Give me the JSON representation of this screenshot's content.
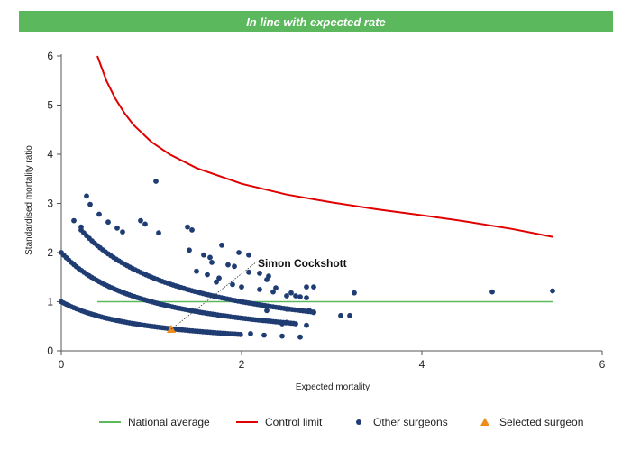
{
  "colors": {
    "banner": "#5cb85c",
    "national_average": "#5cb85c",
    "control_limit": "#e00000",
    "other_surgeons": "#1f3c73",
    "selected_surgeon": "#f08c1e"
  },
  "chart_data": {
    "type": "scatter",
    "title": "In line with expected rate",
    "xlabel": "Expected mortality",
    "ylabel": "Standardised mortality ratio",
    "xlim": [
      0,
      6
    ],
    "ylim": [
      0,
      6
    ],
    "x_ticks": [
      "0",
      "2",
      "4",
      "6"
    ],
    "y_ticks": [
      "0",
      "1",
      "2",
      "3",
      "4",
      "5",
      "6"
    ],
    "grid": false,
    "legend_position": "bottom",
    "annotation": "Simon Cockshott",
    "series": [
      {
        "name": "National average",
        "kind": "line",
        "points": [
          [
            0.4,
            1.0
          ],
          [
            5.45,
            1.0
          ]
        ]
      },
      {
        "name": "Control limit",
        "kind": "line",
        "points": [
          [
            0.4,
            6.0
          ],
          [
            0.5,
            5.5
          ],
          [
            0.6,
            5.13
          ],
          [
            0.7,
            4.84
          ],
          [
            0.8,
            4.6
          ],
          [
            1.0,
            4.25
          ],
          [
            1.2,
            4.0
          ],
          [
            1.5,
            3.72
          ],
          [
            2.0,
            3.4
          ],
          [
            2.5,
            3.18
          ],
          [
            3.0,
            3.02
          ],
          [
            3.5,
            2.88
          ],
          [
            4.0,
            2.76
          ],
          [
            4.5,
            2.63
          ],
          [
            5.0,
            2.48
          ],
          [
            5.45,
            2.32
          ]
        ]
      },
      {
        "name": "Other surgeons",
        "kind": "scatter",
        "points": [
          [
            0.28,
            3.15
          ],
          [
            0.32,
            2.98
          ],
          [
            0.14,
            2.65
          ],
          [
            0.22,
            2.52
          ],
          [
            0.42,
            2.78
          ],
          [
            0.52,
            2.62
          ],
          [
            0.62,
            2.5
          ],
          [
            0.68,
            2.42
          ],
          [
            0.88,
            2.65
          ],
          [
            0.93,
            2.58
          ],
          [
            1.08,
            2.4
          ],
          [
            1.4,
            2.52
          ],
          [
            1.45,
            2.46
          ],
          [
            1.05,
            3.45
          ],
          [
            1.42,
            2.05
          ],
          [
            1.58,
            1.95
          ],
          [
            1.65,
            1.9
          ],
          [
            1.67,
            1.8
          ],
          [
            1.78,
            2.15
          ],
          [
            1.85,
            1.75
          ],
          [
            1.92,
            1.72
          ],
          [
            1.97,
            2.0
          ],
          [
            2.08,
            1.95
          ],
          [
            2.08,
            1.6
          ],
          [
            2.2,
            1.58
          ],
          [
            2.28,
            1.45
          ],
          [
            2.3,
            1.52
          ],
          [
            2.38,
            1.28
          ],
          [
            2.55,
            1.18
          ],
          [
            2.72,
            1.3
          ],
          [
            2.8,
            1.3
          ],
          [
            2.72,
            1.08
          ],
          [
            2.6,
            1.12
          ],
          [
            2.42,
            0.88
          ],
          [
            2.5,
            0.85
          ],
          [
            2.28,
            0.82
          ],
          [
            2.45,
            0.55
          ],
          [
            2.5,
            0.58
          ],
          [
            2.6,
            0.55
          ],
          [
            2.75,
            0.82
          ],
          [
            2.8,
            0.78
          ],
          [
            2.72,
            0.52
          ],
          [
            2.65,
            0.28
          ],
          [
            2.45,
            0.3
          ],
          [
            2.25,
            0.32
          ],
          [
            2.1,
            0.35
          ],
          [
            3.1,
            0.72
          ],
          [
            3.2,
            0.72
          ],
          [
            3.25,
            1.18
          ],
          [
            4.78,
            1.2
          ],
          [
            5.45,
            1.22
          ],
          [
            1.72,
            1.4
          ],
          [
            1.9,
            1.35
          ],
          [
            2.0,
            1.3
          ],
          [
            2.2,
            1.25
          ],
          [
            2.35,
            1.2
          ],
          [
            2.5,
            1.12
          ],
          [
            2.65,
            1.1
          ],
          [
            1.5,
            1.62
          ],
          [
            1.62,
            1.55
          ],
          [
            1.75,
            1.48
          ]
        ]
      },
      {
        "name": "Selected surgeon",
        "kind": "scatter",
        "points": [
          [
            1.22,
            0.44
          ]
        ]
      }
    ],
    "curves": [
      {
        "name": "Other surgeons",
        "k": 1.0,
        "x_from": 0.0,
        "x_to": 2.0,
        "step": 0.028
      },
      {
        "name": "Other surgeons",
        "k": 2.0,
        "x_from": 0.0,
        "x_to": 2.6,
        "step": 0.028
      },
      {
        "name": "Other surgeons",
        "k": 3.0,
        "x_from": 0.22,
        "x_to": 2.8,
        "step": 0.03
      }
    ]
  },
  "legend": [
    {
      "label": "National average",
      "symbol": "line",
      "color": "#5cb85c"
    },
    {
      "label": "Control limit",
      "symbol": "line",
      "color": "#e00000"
    },
    {
      "label": "Other surgeons",
      "symbol": "dot",
      "color": "#1f3c73"
    },
    {
      "label": "Selected surgeon",
      "symbol": "triangle",
      "color": "#f08c1e"
    }
  ]
}
